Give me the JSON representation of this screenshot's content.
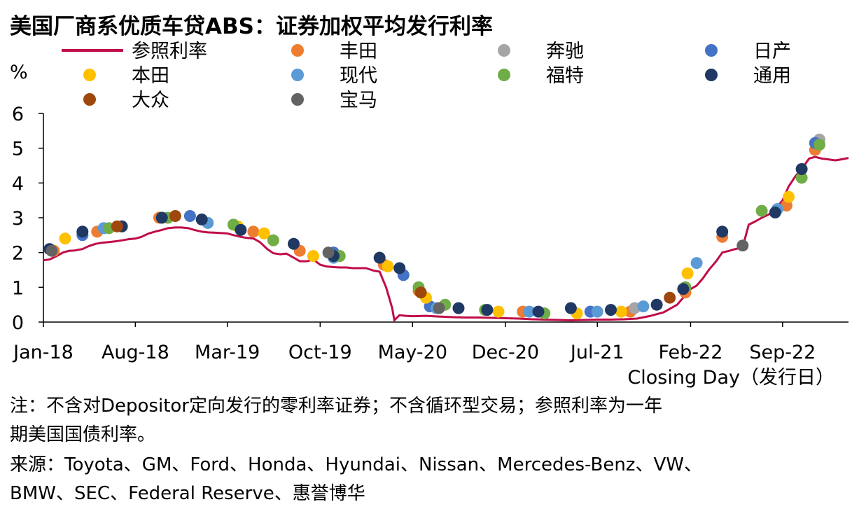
{
  "chart_data": {
    "type": "scatter",
    "title": "美国厂商系优质车贷ABS：证券加权平均发行利率",
    "ylabel": "%",
    "xlabel": "Closing Day（发行日）",
    "ylim": [
      0,
      6
    ],
    "yticks": [
      "0",
      "1",
      "2",
      "3",
      "4",
      "5",
      "6"
    ],
    "xlim": [
      "2018-01-01",
      "2023-01-31"
    ],
    "xticks": [
      {
        "label": "Jan-18",
        "date": "2018-01-01"
      },
      {
        "label": "Aug-18",
        "date": "2018-08-01"
      },
      {
        "label": "Mar-19",
        "date": "2019-03-01"
      },
      {
        "label": "Oct-19",
        "date": "2019-10-01"
      },
      {
        "label": "May-20",
        "date": "2020-05-01"
      },
      {
        "label": "Dec-20",
        "date": "2020-12-01"
      },
      {
        "label": "Jul-21",
        "date": "2021-07-01"
      },
      {
        "label": "Feb-22",
        "date": "2022-02-01"
      },
      {
        "label": "Sep-22",
        "date": "2022-09-01"
      }
    ],
    "grid": false,
    "legend_position": "top",
    "reference_line": {
      "name": "参照利率",
      "color": "#C00C48",
      "points": [
        [
          "2018-01-01",
          1.78
        ],
        [
          "2018-01-15",
          1.8
        ],
        [
          "2018-02-01",
          1.9
        ],
        [
          "2018-02-15",
          2.0
        ],
        [
          "2018-03-01",
          2.05
        ],
        [
          "2018-03-15",
          2.06
        ],
        [
          "2018-04-01",
          2.1
        ],
        [
          "2018-04-15",
          2.18
        ],
        [
          "2018-05-01",
          2.25
        ],
        [
          "2018-05-15",
          2.28
        ],
        [
          "2018-06-01",
          2.3
        ],
        [
          "2018-06-15",
          2.32
        ],
        [
          "2018-07-01",
          2.35
        ],
        [
          "2018-07-15",
          2.38
        ],
        [
          "2018-08-01",
          2.4
        ],
        [
          "2018-08-15",
          2.45
        ],
        [
          "2018-09-01",
          2.55
        ],
        [
          "2018-09-15",
          2.6
        ],
        [
          "2018-10-01",
          2.65
        ],
        [
          "2018-10-15",
          2.7
        ],
        [
          "2018-11-01",
          2.72
        ],
        [
          "2018-11-15",
          2.72
        ],
        [
          "2018-12-01",
          2.7
        ],
        [
          "2018-12-15",
          2.65
        ],
        [
          "2019-01-01",
          2.6
        ],
        [
          "2019-01-15",
          2.58
        ],
        [
          "2019-02-01",
          2.57
        ],
        [
          "2019-02-15",
          2.56
        ],
        [
          "2019-03-01",
          2.55
        ],
        [
          "2019-03-15",
          2.5
        ],
        [
          "2019-04-01",
          2.45
        ],
        [
          "2019-04-15",
          2.42
        ],
        [
          "2019-05-01",
          2.4
        ],
        [
          "2019-05-15",
          2.3
        ],
        [
          "2019-06-01",
          2.1
        ],
        [
          "2019-06-15",
          1.98
        ],
        [
          "2019-07-01",
          1.95
        ],
        [
          "2019-07-15",
          1.97
        ],
        [
          "2019-08-01",
          1.85
        ],
        [
          "2019-08-15",
          1.75
        ],
        [
          "2019-09-01",
          1.75
        ],
        [
          "2019-09-15",
          1.8
        ],
        [
          "2019-10-01",
          1.65
        ],
        [
          "2019-10-15",
          1.6
        ],
        [
          "2019-11-01",
          1.58
        ],
        [
          "2019-11-15",
          1.57
        ],
        [
          "2019-12-01",
          1.57
        ],
        [
          "2019-12-15",
          1.55
        ],
        [
          "2020-01-01",
          1.55
        ],
        [
          "2020-01-15",
          1.55
        ],
        [
          "2020-02-01",
          1.48
        ],
        [
          "2020-02-15",
          1.45
        ],
        [
          "2020-03-01",
          1.0
        ],
        [
          "2020-03-15",
          0.4
        ],
        [
          "2020-03-20",
          0.05
        ],
        [
          "2020-04-01",
          0.2
        ],
        [
          "2020-04-15",
          0.18
        ],
        [
          "2020-05-01",
          0.17
        ],
        [
          "2020-06-01",
          0.18
        ],
        [
          "2020-07-01",
          0.16
        ],
        [
          "2020-08-01",
          0.14
        ],
        [
          "2020-09-01",
          0.13
        ],
        [
          "2020-10-01",
          0.13
        ],
        [
          "2020-11-01",
          0.12
        ],
        [
          "2020-12-01",
          0.11
        ],
        [
          "2021-01-01",
          0.1
        ],
        [
          "2021-02-01",
          0.08
        ],
        [
          "2021-03-01",
          0.07
        ],
        [
          "2021-04-01",
          0.06
        ],
        [
          "2021-05-01",
          0.05
        ],
        [
          "2021-06-01",
          0.06
        ],
        [
          "2021-07-01",
          0.07
        ],
        [
          "2021-08-01",
          0.07
        ],
        [
          "2021-09-01",
          0.08
        ],
        [
          "2021-10-01",
          0.1
        ],
        [
          "2021-11-01",
          0.18
        ],
        [
          "2021-12-01",
          0.28
        ],
        [
          "2022-01-01",
          0.5
        ],
        [
          "2022-01-15",
          0.7
        ],
        [
          "2022-02-01",
          0.95
        ],
        [
          "2022-02-15",
          1.05
        ],
        [
          "2022-03-01",
          1.25
        ],
        [
          "2022-03-15",
          1.5
        ],
        [
          "2022-04-01",
          1.75
        ],
        [
          "2022-04-15",
          2.0
        ],
        [
          "2022-05-01",
          2.05
        ],
        [
          "2022-05-15",
          2.1
        ],
        [
          "2022-06-01",
          2.15
        ],
        [
          "2022-06-15",
          2.8
        ],
        [
          "2022-07-01",
          2.9
        ],
        [
          "2022-07-15",
          3.0
        ],
        [
          "2022-08-01",
          3.1
        ],
        [
          "2022-08-15",
          3.25
        ],
        [
          "2022-09-01",
          3.5
        ],
        [
          "2022-09-15",
          3.9
        ],
        [
          "2022-10-01",
          4.2
        ],
        [
          "2022-10-15",
          4.4
        ],
        [
          "2022-11-01",
          4.7
        ],
        [
          "2022-11-15",
          4.75
        ],
        [
          "2022-12-01",
          4.7
        ],
        [
          "2022-12-15",
          4.68
        ],
        [
          "2023-01-01",
          4.65
        ],
        [
          "2023-01-15",
          4.68
        ],
        [
          "2023-01-31",
          4.72
        ]
      ]
    },
    "series": [
      {
        "name": "丰田",
        "color": "#ED7D31",
        "points": [
          [
            "2018-01-25",
            2.05
          ],
          [
            "2018-05-05",
            2.6
          ],
          [
            "2018-09-25",
            3.0
          ],
          [
            "2019-04-30",
            2.6
          ],
          [
            "2019-08-15",
            2.05
          ],
          [
            "2020-02-25",
            1.65
          ],
          [
            "2020-05-15",
            0.9
          ],
          [
            "2021-01-10",
            0.3
          ],
          [
            "2021-09-15",
            0.3
          ],
          [
            "2022-01-20",
            0.85
          ],
          [
            "2022-04-15",
            2.45
          ],
          [
            "2022-09-10",
            3.35
          ],
          [
            "2022-11-15",
            4.95
          ]
        ]
      },
      {
        "name": "奔驰",
        "color": "#A5A5A5",
        "points": [
          [
            "2021-09-25",
            0.4
          ],
          [
            "2022-11-25",
            5.25
          ]
        ]
      },
      {
        "name": "日产",
        "color": "#4472C4",
        "points": [
          [
            "2018-04-01",
            2.5
          ],
          [
            "2018-12-05",
            3.05
          ],
          [
            "2019-11-01",
            2.0
          ],
          [
            "2020-04-10",
            1.35
          ],
          [
            "2020-06-10",
            0.45
          ],
          [
            "2021-06-15",
            0.3
          ],
          [
            "2022-11-15",
            5.15
          ]
        ]
      },
      {
        "name": "本田",
        "color": "#FFC000",
        "points": [
          [
            "2018-02-20",
            2.4
          ],
          [
            "2018-07-01",
            2.75
          ],
          [
            "2019-03-25",
            2.75
          ],
          [
            "2019-05-25",
            2.55
          ],
          [
            "2019-09-15",
            1.9
          ],
          [
            "2019-11-15",
            1.9
          ],
          [
            "2020-03-05",
            1.6
          ],
          [
            "2020-06-01",
            0.7
          ],
          [
            "2020-11-15",
            0.3
          ],
          [
            "2021-05-15",
            0.25
          ],
          [
            "2021-08-25",
            0.3
          ],
          [
            "2022-01-25",
            1.4
          ],
          [
            "2022-09-15",
            3.6
          ]
        ]
      },
      {
        "name": "现代",
        "color": "#5B9BD5",
        "points": [
          [
            "2018-05-20",
            2.7
          ],
          [
            "2019-01-15",
            2.85
          ],
          [
            "2019-11-01",
            1.85
          ],
          [
            "2020-06-25",
            0.4
          ],
          [
            "2021-01-25",
            0.3
          ],
          [
            "2021-07-01",
            0.3
          ],
          [
            "2021-10-15",
            0.45
          ],
          [
            "2022-02-15",
            1.7
          ],
          [
            "2022-08-20",
            3.25
          ]
        ]
      },
      {
        "name": "福特",
        "color": "#70AD47",
        "points": [
          [
            "2018-06-01",
            2.7
          ],
          [
            "2018-10-15",
            3.0
          ],
          [
            "2019-03-15",
            2.8
          ],
          [
            "2019-06-15",
            2.35
          ],
          [
            "2019-11-15",
            1.9
          ],
          [
            "2020-05-15",
            1.0
          ],
          [
            "2020-07-15",
            0.5
          ],
          [
            "2020-10-15",
            0.35
          ],
          [
            "2021-03-01",
            0.25
          ],
          [
            "2022-01-20",
            1.0
          ],
          [
            "2022-07-15",
            3.2
          ],
          [
            "2022-10-15",
            4.15
          ],
          [
            "2022-11-25",
            5.1
          ]
        ]
      },
      {
        "name": "通用",
        "color": "#203864",
        "points": [
          [
            "2018-01-15",
            2.1
          ],
          [
            "2018-04-01",
            2.6
          ],
          [
            "2018-07-01",
            2.75
          ],
          [
            "2018-10-01",
            3.0
          ],
          [
            "2019-01-01",
            2.95
          ],
          [
            "2019-04-01",
            2.65
          ],
          [
            "2019-08-01",
            2.25
          ],
          [
            "2019-11-01",
            1.9
          ],
          [
            "2020-02-15",
            1.85
          ],
          [
            "2020-04-01",
            1.55
          ],
          [
            "2020-08-15",
            0.4
          ],
          [
            "2020-10-20",
            0.35
          ],
          [
            "2021-02-15",
            0.3
          ],
          [
            "2021-05-01",
            0.4
          ],
          [
            "2021-08-01",
            0.35
          ],
          [
            "2021-11-15",
            0.5
          ],
          [
            "2022-01-15",
            0.95
          ],
          [
            "2022-04-15",
            2.6
          ],
          [
            "2022-08-15",
            3.15
          ],
          [
            "2022-10-15",
            4.4
          ]
        ]
      },
      {
        "name": "大众",
        "color": "#9E480E",
        "points": [
          [
            "2018-06-20",
            2.75
          ],
          [
            "2018-11-01",
            3.05
          ],
          [
            "2020-05-20",
            0.85
          ],
          [
            "2021-12-15",
            0.7
          ]
        ]
      },
      {
        "name": "宝马",
        "color": "#636363",
        "points": [
          [
            "2018-01-20",
            2.05
          ],
          [
            "2019-10-20",
            2.0
          ],
          [
            "2020-07-01",
            0.4
          ],
          [
            "2022-06-01",
            2.2
          ]
        ]
      }
    ]
  },
  "notes": {
    "line1": "注：不含对Depositor定向发行的零利率证券；不含循环型交易；参照利率为一年",
    "line2": "期美国国债利率。",
    "line3": "来源：Toyota、GM、Ford、Honda、Hyundai、Nissan、Mercedes-Benz、VW、",
    "line4": "BMW、SEC、Federal Reserve、惠誉博华"
  }
}
